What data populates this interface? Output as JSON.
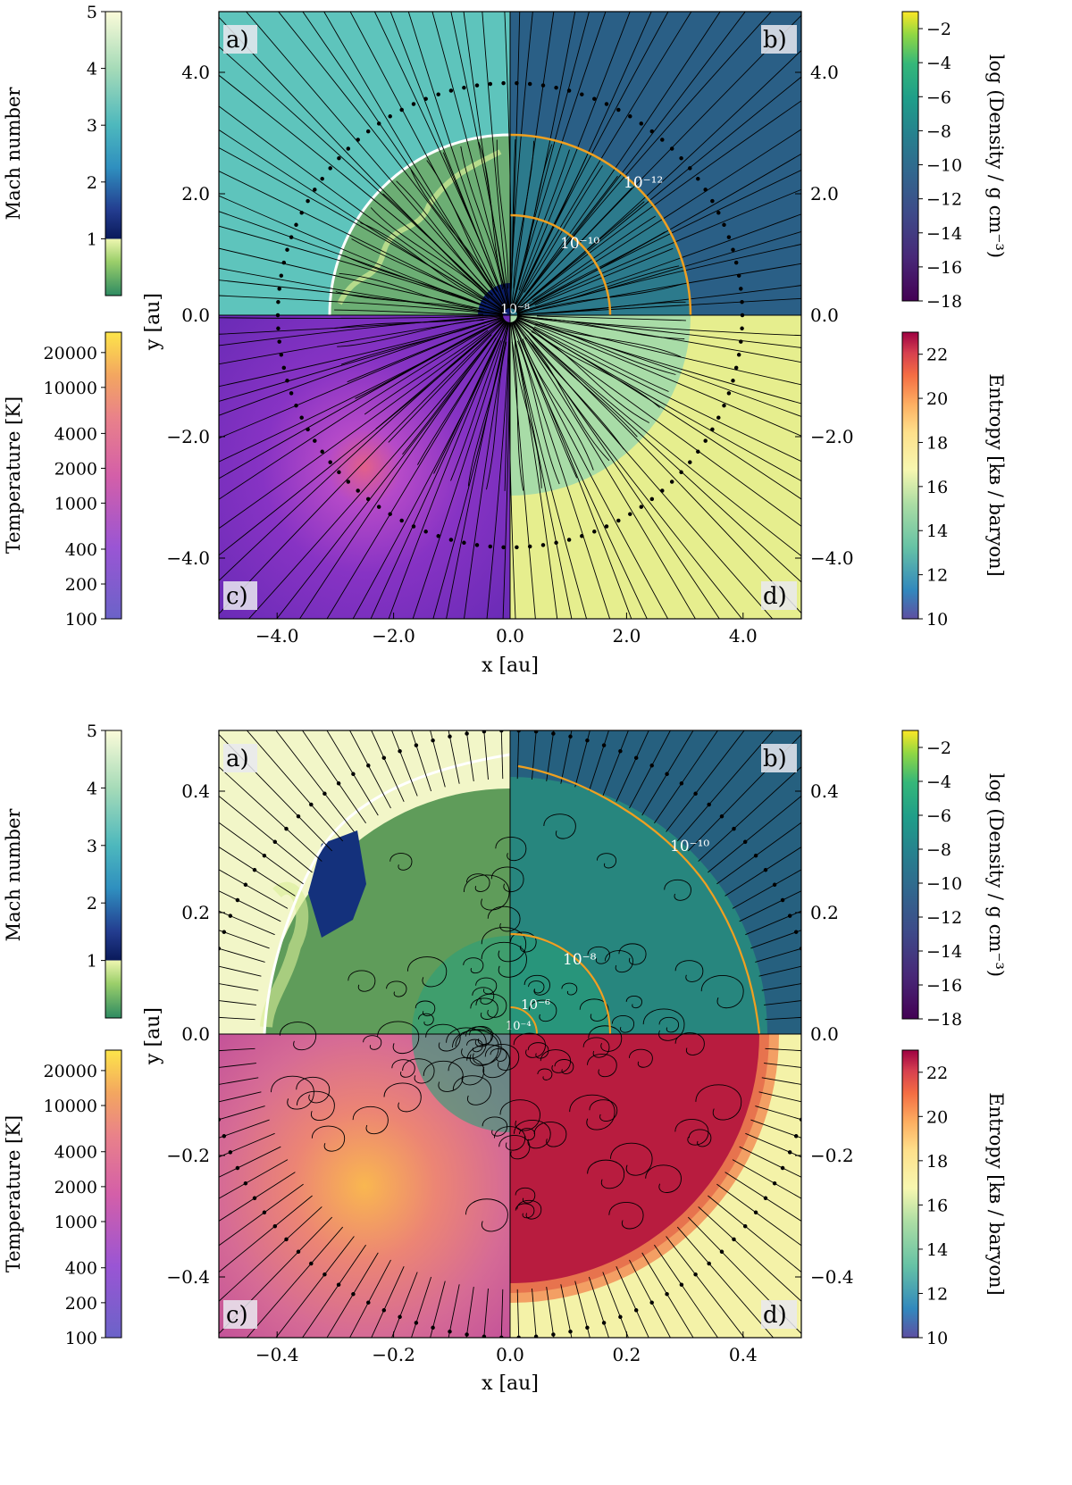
{
  "chart_data": [
    {
      "type": "heatmap",
      "id": "top",
      "panels": [
        {
          "key": "a",
          "label": "a)",
          "quantity": "Mach number",
          "region": "upper-left"
        },
        {
          "key": "b",
          "label": "b)",
          "quantity": "log (Density / g cm⁻³)",
          "region": "upper-right"
        },
        {
          "key": "c",
          "label": "c)",
          "quantity": "Temperature [K]",
          "region": "lower-left"
        },
        {
          "key": "d",
          "label": "d)",
          "quantity": "Entropy  [kʙ / baryon]",
          "region": "lower-right"
        }
      ],
      "xlabel": "x [au]",
      "ylabel": "y [au]",
      "xlim": [
        -5.0,
        5.0
      ],
      "ylim": [
        -5.0,
        5.0
      ],
      "x_ticks": [
        -4.0,
        -2.0,
        0.0,
        2.0,
        4.0
      ],
      "x_tick_labels": [
        "−4.0",
        "−2.0",
        "0.0",
        "2.0",
        "4.0"
      ],
      "y_ticks": [
        4.0,
        2.0,
        0.0,
        -2.0,
        -4.0
      ],
      "y_tick_labels": [
        "4.0",
        "2.0",
        "0.0",
        "−2.0",
        "−4.0"
      ],
      "shock_radius_au": 3.1,
      "inner_region_radius_au": 0.55,
      "density_contours": [
        {
          "label": "10⁻¹²",
          "radius_au": 3.1
        },
        {
          "label": "10⁻¹⁰",
          "radius_au": 1.72
        },
        {
          "label": "10⁻⁸",
          "radius_au": 0.08
        }
      ],
      "colorbars": [
        {
          "key": "mach",
          "title": "Mach number",
          "ticks": [
            1,
            2,
            3,
            4,
            5
          ],
          "tick_labels": [
            "1",
            "2",
            "3",
            "4",
            "5"
          ],
          "range": [
            0,
            5
          ],
          "scale": "linear"
        },
        {
          "key": "temperature",
          "title": "Temperature [K]",
          "ticks": [
            100,
            200,
            400,
            1000,
            2000,
            4000,
            10000,
            20000
          ],
          "tick_labels": [
            "100",
            "200",
            "400",
            "1000",
            "2000",
            "4000",
            "10000",
            "20000"
          ],
          "range": [
            100,
            30000
          ],
          "scale": "log"
        },
        {
          "key": "density",
          "title": "log (Density / g cm⁻³)",
          "ticks": [
            -2,
            -4,
            -6,
            -8,
            -10,
            -12,
            -14,
            -16,
            -18
          ],
          "tick_labels": [
            "−2",
            "−4",
            "−6",
            "−8",
            "−10",
            "−12",
            "−14",
            "−16",
            "−18"
          ],
          "range": [
            -18,
            -1
          ],
          "scale": "linear"
        },
        {
          "key": "entropy",
          "title": "Entropy  [kʙ / baryon]",
          "ticks": [
            22,
            20,
            18,
            16,
            14,
            12,
            10
          ],
          "tick_labels": [
            "22",
            "20",
            "18",
            "16",
            "14",
            "12",
            "10"
          ],
          "range": [
            10,
            23
          ],
          "scale": "linear"
        }
      ]
    },
    {
      "type": "heatmap",
      "id": "bottom",
      "panels": [
        {
          "key": "a",
          "label": "a)",
          "quantity": "Mach number",
          "region": "upper-left"
        },
        {
          "key": "b",
          "label": "b)",
          "quantity": "log (Density / g cm⁻³)",
          "region": "upper-right"
        },
        {
          "key": "c",
          "label": "c)",
          "quantity": "Temperature [K]",
          "region": "lower-left"
        },
        {
          "key": "d",
          "label": "d)",
          "quantity": "Entropy  [kʙ / baryon]",
          "region": "lower-right"
        }
      ],
      "xlabel": "x [au]",
      "ylabel": "y [au]",
      "xlim": [
        -0.5,
        0.5
      ],
      "ylim": [
        -0.5,
        0.5
      ],
      "x_ticks": [
        -0.4,
        -0.2,
        0.0,
        0.2,
        0.4
      ],
      "x_tick_labels": [
        "−0.4",
        "−0.2",
        "0.0",
        "0.2",
        "0.4"
      ],
      "y_ticks": [
        0.4,
        0.2,
        0.0,
        -0.2,
        -0.4
      ],
      "y_tick_labels": [
        "0.4",
        "0.2",
        "0.0",
        "−0.2",
        "−0.4"
      ],
      "shock_radius_au": 0.42,
      "density_contours": [
        {
          "label": "10⁻¹⁰",
          "radius_au": 0.42
        },
        {
          "label": "10⁻⁸",
          "radius_au": 0.17
        },
        {
          "label": "10⁻⁶",
          "radius_au": 0.045
        },
        {
          "label": "10⁻⁴",
          "radius_au": 0.012
        }
      ],
      "colorbars": [
        {
          "key": "mach",
          "title": "Mach number",
          "ticks": [
            1,
            2,
            3,
            4,
            5
          ],
          "tick_labels": [
            "1",
            "2",
            "3",
            "4",
            "5"
          ],
          "range": [
            0,
            5
          ],
          "scale": "linear"
        },
        {
          "key": "temperature",
          "title": "Temperature [K]",
          "ticks": [
            100,
            200,
            400,
            1000,
            2000,
            4000,
            10000,
            20000
          ],
          "tick_labels": [
            "100",
            "200",
            "400",
            "1000",
            "2000",
            "4000",
            "10000",
            "20000"
          ],
          "range": [
            100,
            30000
          ],
          "scale": "log"
        },
        {
          "key": "density",
          "title": "log (Density / g cm⁻³)",
          "ticks": [
            -2,
            -4,
            -6,
            -8,
            -10,
            -12,
            -14,
            -16,
            -18
          ],
          "tick_labels": [
            "−2",
            "−4",
            "−6",
            "−8",
            "−10",
            "−12",
            "−14",
            "−16",
            "−18"
          ],
          "range": [
            -18,
            -1
          ],
          "scale": "linear"
        },
        {
          "key": "entropy",
          "title": "Entropy  [kʙ / baryon]",
          "ticks": [
            22,
            20,
            18,
            16,
            14,
            12,
            10
          ],
          "tick_labels": [
            "22",
            "20",
            "18",
            "16",
            "14",
            "12",
            "10"
          ],
          "range": [
            10,
            23
          ],
          "scale": "linear"
        }
      ]
    }
  ],
  "colors": {
    "top_mach_background": "#5ec4bc",
    "top_density_background": "#2a5f86",
    "top_temperature_background": "#7c2fc0",
    "top_entropy_background": "#e6ee8e",
    "bottom_mach_background": "#f2f6c8",
    "bottom_density_background": "#26607f",
    "bottom_temperature_background": "#cc5a9b",
    "bottom_entropy_background": "#f4f2a8",
    "contour": "#f0a020",
    "streamline": "#000000"
  }
}
